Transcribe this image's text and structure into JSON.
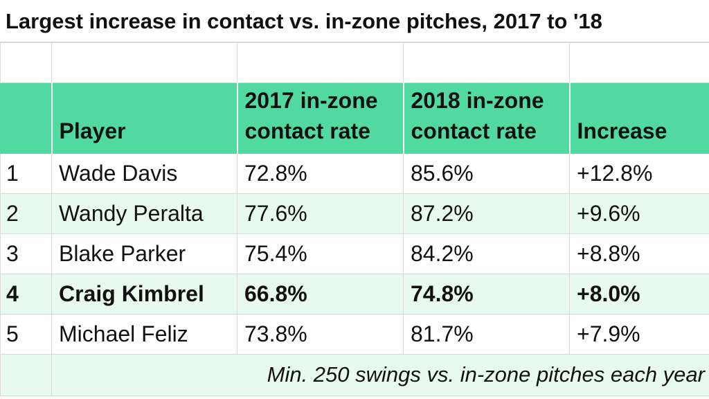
{
  "chart_data": {
    "type": "table",
    "title": "Largest increase in contact vs. in-zone pitches, 2017 to '18",
    "columns": [
      "",
      "Player",
      "2017 in-zone contact rate",
      "2018 in-zone contact rate",
      "Increase"
    ],
    "rows": [
      {
        "rank": "1",
        "player": "Wade Davis",
        "rate2017": "72.8%",
        "rate2018": "85.6%",
        "increase": "+12.8%"
      },
      {
        "rank": "2",
        "player": "Wandy Peralta",
        "rate2017": "77.6%",
        "rate2018": "87.2%",
        "increase": "+9.6%"
      },
      {
        "rank": "3",
        "player": "Blake Parker",
        "rate2017": "75.4%",
        "rate2018": "84.2%",
        "increase": "+8.8%"
      },
      {
        "rank": "4",
        "player": "Craig Kimbrel",
        "rate2017": "66.8%",
        "rate2018": "74.8%",
        "increase": "+8.0%",
        "highlight": true
      },
      {
        "rank": "5",
        "player": "Michael Feliz",
        "rate2017": "73.8%",
        "rate2018": "81.7%",
        "increase": "+7.9%"
      }
    ],
    "footnote": "Min. 250 swings vs. in-zone pitches each year",
    "header_color": "#52d9a0",
    "stripe_color": "#e8faf0"
  }
}
